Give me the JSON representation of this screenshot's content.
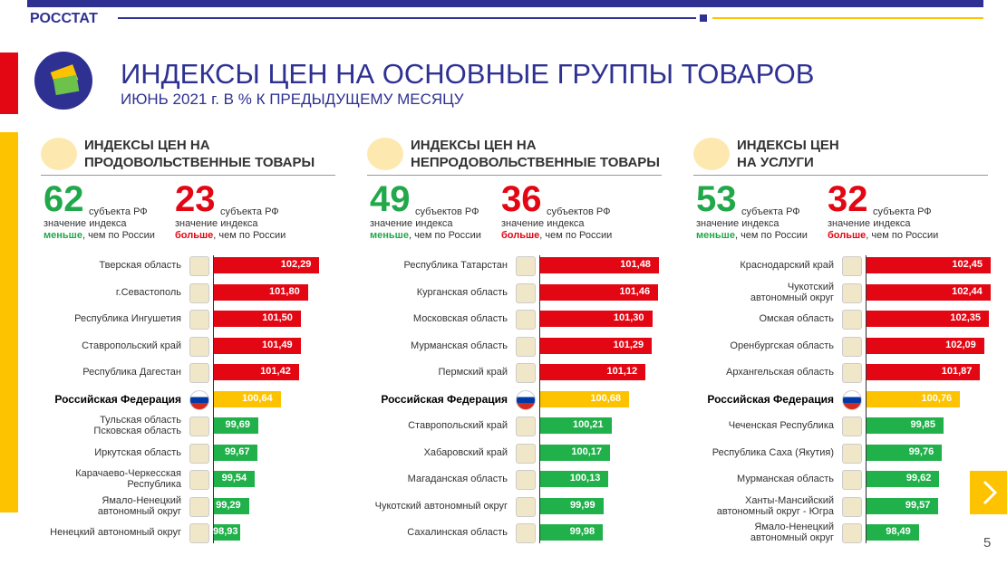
{
  "header": {
    "brand": "РОССТАТ",
    "title": "ИНДЕКСЫ ЦЕН НА ОСНОВНЫЕ ГРУППЫ ТОВАРОВ",
    "subtitle": "ИЮНЬ 2021 г. В % К ПРЕДЫДУЩЕМУ МЕСЯЦУ",
    "page": 5
  },
  "chart_data": [
    {
      "type": "bar",
      "orientation": "horizontal",
      "title": [
        "ИНДЕКСЫ ЦЕН НА",
        "ПРОДОВОЛЬСТВЕННЫЕ ТОВАРЫ"
      ],
      "summary": [
        {
          "count": 62,
          "unit": "субъекта РФ",
          "note": "значение индекса",
          "emphasis": "меньше",
          "rest": ", чем по России",
          "color": "#21a84a"
        },
        {
          "count": 23,
          "unit": "субъекта РФ",
          "note": "значение индекса",
          "emphasis": "больше",
          "rest": ", чем по России",
          "color": "#e30613"
        }
      ],
      "categories": [
        "Тверская область",
        "г.Севастополь",
        "Республика Ингушетия",
        "Ставропольский край",
        "Республика Дагестан",
        "Российская Федерация",
        "Тульская область\nПсковская область",
        "Иркутская область",
        "Карачаево-Черкесская\nРеспублика",
        "Ямало-Ненецкий\nавтономный округ",
        "Ненецкий автономный округ"
      ],
      "values": [
        102.29,
        101.8,
        101.5,
        101.49,
        101.42,
        100.64,
        99.69,
        99.67,
        99.54,
        99.29,
        98.93
      ],
      "value_labels": [
        "102,29",
        "101,80",
        "101,50",
        "101,49",
        "101,42",
        "100,64",
        "99,69",
        "99,67",
        "99,54",
        "99,29",
        "98,93"
      ],
      "colors": [
        "#e30613",
        "#e30613",
        "#e30613",
        "#e30613",
        "#e30613",
        "#fdc300",
        "#21b14b",
        "#21b14b",
        "#21b14b",
        "#21b14b",
        "#21b14b"
      ],
      "reference_index": 5,
      "xlim": [
        97.8,
        103.2
      ]
    },
    {
      "type": "bar",
      "orientation": "horizontal",
      "title": [
        "ИНДЕКСЫ ЦЕН НА",
        "НЕПРОДОВОЛЬСТВЕННЫЕ ТОВАРЫ"
      ],
      "summary": [
        {
          "count": 49,
          "unit": "субъектов РФ",
          "note": "значение индекса",
          "emphasis": "меньше",
          "rest": ", чем по России",
          "color": "#21a84a"
        },
        {
          "count": 36,
          "unit": "субъектов РФ",
          "note": "значение индекса",
          "emphasis": "больше",
          "rest": ", чем по России",
          "color": "#e30613"
        }
      ],
      "categories": [
        "Республика Татарстан",
        "Курганская область",
        "Московская область",
        "Мурманская область",
        "Пермский край",
        "Российская Федерация",
        "Ставропольский край",
        "Хабаровский край",
        "Магаданская область",
        "Чукотский автономный округ",
        "Сахалинская область"
      ],
      "values": [
        101.48,
        101.46,
        101.3,
        101.29,
        101.12,
        100.68,
        100.21,
        100.17,
        100.13,
        99.99,
        99.98
      ],
      "value_labels": [
        "101,48",
        "101,46",
        "101,30",
        "101,29",
        "101,12",
        "100,68",
        "100,21",
        "100,17",
        "100,13",
        "99,99",
        "99,98"
      ],
      "colors": [
        "#e30613",
        "#e30613",
        "#e30613",
        "#e30613",
        "#e30613",
        "#fdc300",
        "#21b14b",
        "#21b14b",
        "#21b14b",
        "#21b14b",
        "#21b14b"
      ],
      "reference_index": 5,
      "xlim": [
        98.3,
        101.7
      ]
    },
    {
      "type": "bar",
      "orientation": "horizontal",
      "title": [
        "ИНДЕКСЫ ЦЕН",
        "НА УСЛУГИ"
      ],
      "summary": [
        {
          "count": 53,
          "unit": "субъекта РФ",
          "note": "значение индекса",
          "emphasis": "меньше",
          "rest": ", чем по России",
          "color": "#21a84a"
        },
        {
          "count": 32,
          "unit": "субъекта РФ",
          "note": "значение индекса",
          "emphasis": "больше",
          "rest": ", чем по России",
          "color": "#e30613"
        }
      ],
      "categories": [
        "Краснодарский край",
        "Чукотский\nавтономный округ",
        "Омская область",
        "Оренбургская область",
        "Архангельская область",
        "Российская Федерация",
        "Чеченская Республика",
        "Республика Саха (Якутия)",
        "Мурманская область",
        "Ханты-Мансийский\nавтономный округ - Югра",
        "Ямало-Ненецкий\nавтономный округ"
      ],
      "values": [
        102.45,
        102.44,
        102.35,
        102.09,
        101.87,
        100.76,
        99.85,
        99.76,
        99.62,
        99.57,
        98.49
      ],
      "value_labels": [
        "102,45",
        "102,44",
        "102,35",
        "102,09",
        "101,87",
        "100,76",
        "99,85",
        "99,76",
        "99,62",
        "99,57",
        "98,49"
      ],
      "colors": [
        "#e30613",
        "#e30613",
        "#e30613",
        "#e30613",
        "#e30613",
        "#fdc300",
        "#21b14b",
        "#21b14b",
        "#21b14b",
        "#21b14b",
        "#21b14b"
      ],
      "reference_index": 5,
      "xlim": [
        95.6,
        102.6
      ]
    }
  ]
}
